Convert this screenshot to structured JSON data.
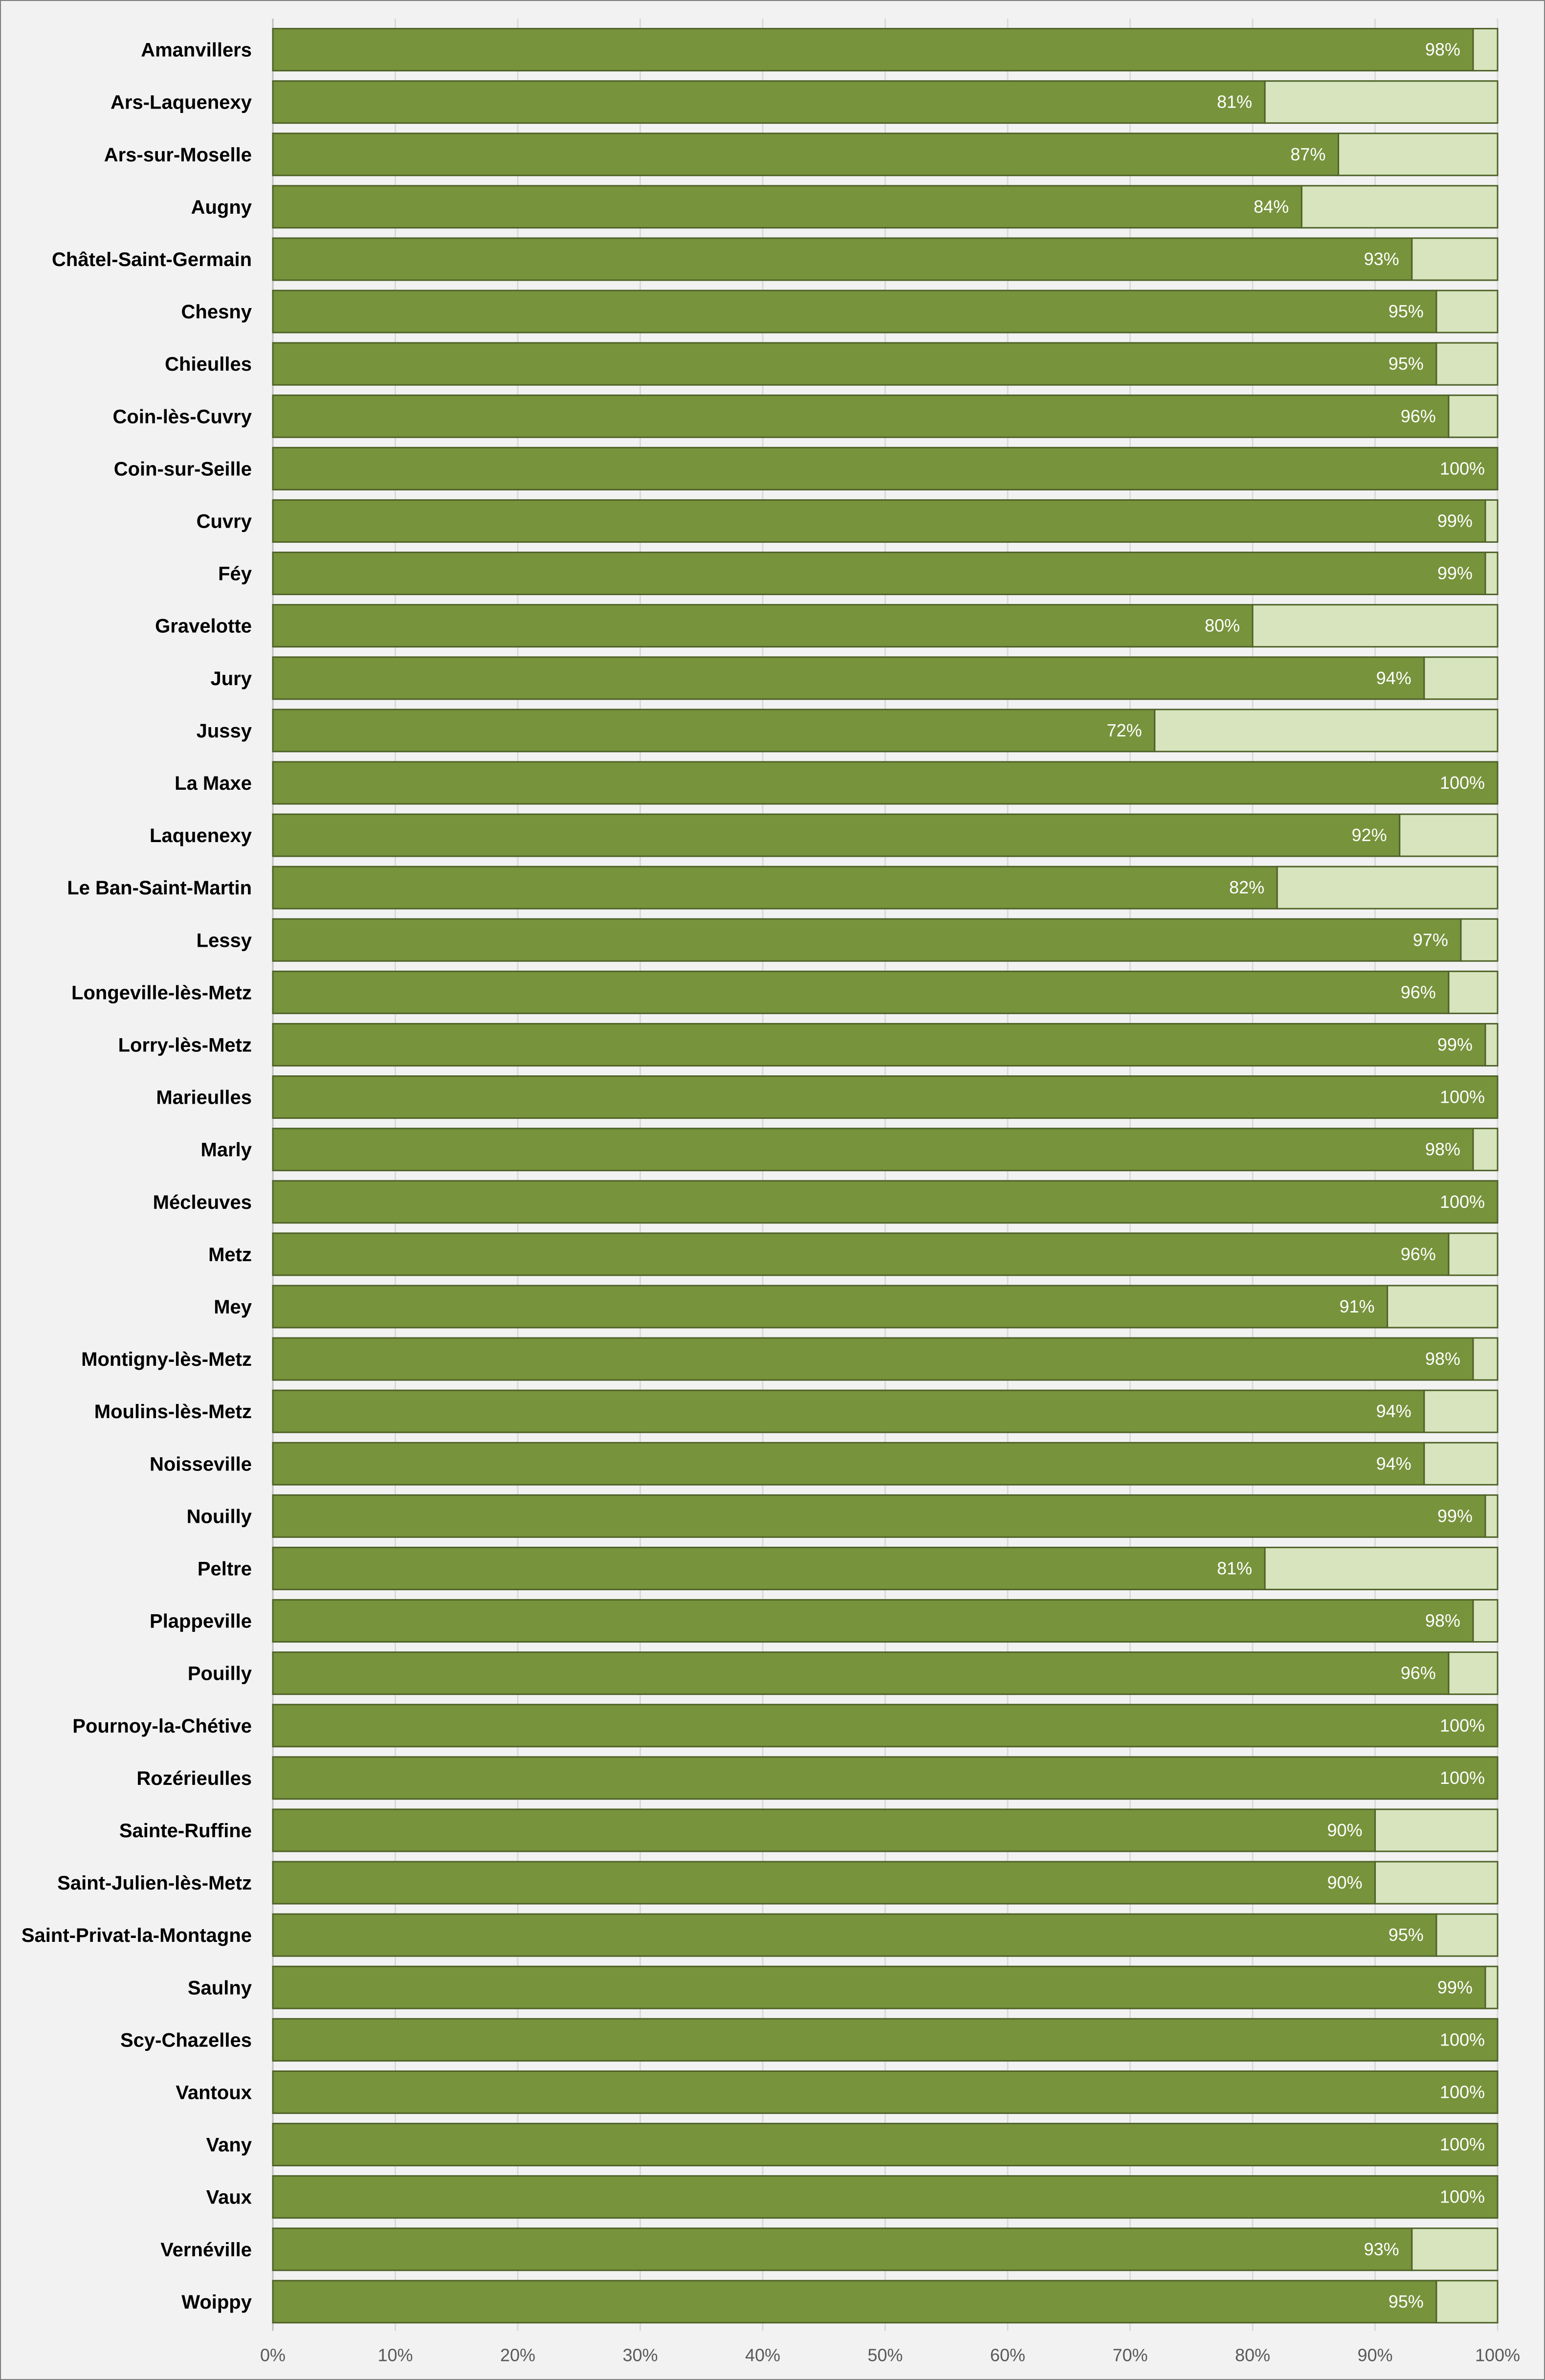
{
  "chart_data": {
    "type": "bar",
    "orientation": "horizontal",
    "stacked": true,
    "title": "",
    "xlabel": "",
    "ylabel": "",
    "xlim": [
      0,
      100
    ],
    "x_ticks": [
      "0%",
      "10%",
      "20%",
      "30%",
      "40%",
      "50%",
      "60%",
      "70%",
      "80%",
      "90%",
      "100%"
    ],
    "grid": true,
    "legend": "none",
    "colors": {
      "value": "#77933c",
      "remainder": "#d7e4bd",
      "bar_border": "#4f6228",
      "grid": "#d9d9d9",
      "label": "#ffffff"
    },
    "categories": [
      "Amanvillers",
      "Ars-Laquenexy",
      "Ars-sur-Moselle",
      "Augny",
      "Châtel-Saint-Germain",
      "Chesny",
      "Chieulles",
      "Coin-lès-Cuvry",
      "Coin-sur-Seille",
      "Cuvry",
      "Féy",
      "Gravelotte",
      "Jury",
      "Jussy",
      "La Maxe",
      "Laquenexy",
      "Le Ban-Saint-Martin",
      "Lessy",
      "Longeville-lès-Metz",
      "Lorry-lès-Metz",
      "Marieulles",
      "Marly",
      "Mécleuves",
      "Metz",
      "Mey",
      "Montigny-lès-Metz",
      "Moulins-lès-Metz",
      "Noisseville",
      "Nouilly",
      "Peltre",
      "Plappeville",
      "Pouilly",
      "Pournoy-la-Chétive",
      "Rozérieulles",
      "Sainte-Ruffine",
      "Saint-Julien-lès-Metz",
      "Saint-Privat-la-Montagne",
      "Saulny",
      "Scy-Chazelles",
      "Vantoux",
      "Vany",
      "Vaux",
      "Vernéville",
      "Woippy"
    ],
    "values": [
      98,
      81,
      87,
      84,
      93,
      95,
      95,
      96,
      100,
      99,
      99,
      80,
      94,
      72,
      100,
      92,
      82,
      97,
      96,
      99,
      100,
      98,
      100,
      96,
      91,
      98,
      94,
      94,
      99,
      81,
      98,
      96,
      100,
      100,
      90,
      90,
      95,
      99,
      100,
      100,
      100,
      100,
      93,
      95
    ],
    "value_labels": [
      "98%",
      "81%",
      "87%",
      "84%",
      "93%",
      "95%",
      "95%",
      "96%",
      "100%",
      "99%",
      "99%",
      "80%",
      "94%",
      "72%",
      "100%",
      "92%",
      "82%",
      "97%",
      "96%",
      "99%",
      "100%",
      "98%",
      "100%",
      "96%",
      "91%",
      "98%",
      "94%",
      "94%",
      "99%",
      "81%",
      "98%",
      "96%",
      "100%",
      "100%",
      "90%",
      "90%",
      "95%",
      "99%",
      "100%",
      "100%",
      "100%",
      "100%",
      "93%",
      "95%"
    ]
  }
}
